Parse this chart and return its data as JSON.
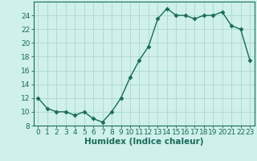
{
  "x": [
    0,
    1,
    2,
    3,
    4,
    5,
    6,
    7,
    8,
    9,
    10,
    11,
    12,
    13,
    14,
    15,
    16,
    17,
    18,
    19,
    20,
    21,
    22,
    23
  ],
  "y": [
    12,
    10.5,
    10,
    10,
    9.5,
    10,
    9,
    8.5,
    10,
    12,
    15,
    17.5,
    19.5,
    23.5,
    25,
    24,
    24,
    23.5,
    24,
    24,
    24.5,
    22.5,
    22,
    17.5
  ],
  "line_color": "#1a6b5a",
  "marker": "D",
  "marker_size": 2.5,
  "bg_color": "#cff0eb",
  "grid_color": "#aad8d3",
  "xlabel": "Humidex (Indice chaleur)",
  "xlim": [
    -0.5,
    23.5
  ],
  "ylim": [
    8,
    26
  ],
  "yticks": [
    8,
    10,
    12,
    14,
    16,
    18,
    20,
    22,
    24
  ],
  "xticks": [
    0,
    1,
    2,
    3,
    4,
    5,
    6,
    7,
    8,
    9,
    10,
    11,
    12,
    13,
    14,
    15,
    16,
    17,
    18,
    19,
    20,
    21,
    22,
    23
  ],
  "tick_label_fontsize": 6.5,
  "xlabel_fontsize": 7.5,
  "tick_color": "#1a6b5a",
  "axis_color": "#1a6b5a",
  "linewidth": 1.0
}
